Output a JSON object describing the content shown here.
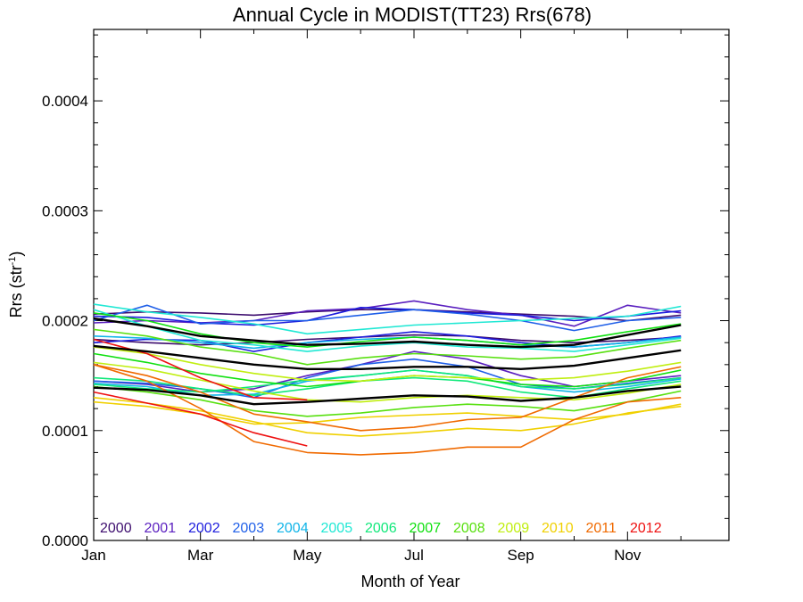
{
  "chart_data": {
    "type": "line",
    "title": "Annual Cycle in MODIST(TT23) Rrs(678)",
    "xlabel": "Month of Year",
    "ylabel_main": "Rrs (str",
    "ylabel_sup": "-1",
    "ylabel_close": ")",
    "xlim": [
      1,
      12.9
    ],
    "ylim": [
      0,
      0.000465
    ],
    "x_ticks": [
      {
        "value": 1,
        "label": "Jan"
      },
      {
        "value": 3,
        "label": "Mar"
      },
      {
        "value": 5,
        "label": "May"
      },
      {
        "value": 7,
        "label": "Jul"
      },
      {
        "value": 9,
        "label": "Sep"
      },
      {
        "value": 11,
        "label": "Nov"
      }
    ],
    "y_ticks": [
      {
        "value": 0,
        "label": "0.0000"
      },
      {
        "value": 0.0001,
        "label": "0.0001"
      },
      {
        "value": 0.0002,
        "label": "0.0002"
      },
      {
        "value": 0.0003,
        "label": "0.0003"
      },
      {
        "value": 0.0004,
        "label": "0.0004"
      }
    ],
    "legend_placement": "bottom-left",
    "legend": [
      {
        "label": "2000",
        "color": "#3d0d6e"
      },
      {
        "label": "2001",
        "color": "#5a1fbf"
      },
      {
        "label": "2002",
        "color": "#1c1cdd"
      },
      {
        "label": "2003",
        "color": "#1f5fe8"
      },
      {
        "label": "2004",
        "color": "#10b4e8"
      },
      {
        "label": "2005",
        "color": "#20e8d4"
      },
      {
        "label": "2006",
        "color": "#10e87a"
      },
      {
        "label": "2007",
        "color": "#10e010"
      },
      {
        "label": "2008",
        "color": "#58e010"
      },
      {
        "label": "2009",
        "color": "#c0ee10"
      },
      {
        "label": "2010",
        "color": "#f0d000"
      },
      {
        "label": "2011",
        "color": "#f06a00"
      },
      {
        "label": "2012",
        "color": "#ee1010"
      }
    ],
    "x": [
      1,
      2,
      3,
      4,
      5,
      6,
      7,
      8,
      9,
      10,
      11,
      12
    ],
    "series": [
      {
        "color": "#3d0d6e",
        "values": [
          0.000206,
          0.000208,
          0.000207,
          0.000205,
          0.000208,
          0.00021,
          0.00021,
          0.000208,
          0.000206,
          0.000204,
          0.0002,
          0.000205
        ]
      },
      {
        "color": "#3d0d6e",
        "values": [
          0.000183,
          0.00018,
          0.000178,
          0.00018,
          0.000183,
          0.000185,
          0.000187,
          0.000186,
          0.000182,
          0.00018,
          0.000182,
          0.000185
        ]
      },
      {
        "color": "#5a1fbf",
        "values": [
          0.000198,
          0.0002,
          0.000198,
          0.0002,
          0.000209,
          0.000211,
          0.000218,
          0.00021,
          0.000205,
          0.000195,
          0.000214,
          0.000207
        ]
      },
      {
        "color": "#5a1fbf",
        "values": [
          0.000145,
          0.000142,
          0.000135,
          0.000138,
          0.00015,
          0.00016,
          0.000172,
          0.000165,
          0.00015,
          0.00014,
          0.000145,
          0.00015
        ]
      },
      {
        "color": "#1c1cdd",
        "values": [
          0.000204,
          0.000203,
          0.000198,
          0.000196,
          0.0002,
          0.000212,
          0.00021,
          0.000207,
          0.000205,
          0.0002,
          0.000204,
          0.000209
        ]
      },
      {
        "color": "#1c1cdd",
        "values": [
          0.00018,
          0.000183,
          0.000182,
          0.000172,
          0.00018,
          0.000185,
          0.00019,
          0.000186,
          0.00018,
          0.000176,
          0.00018,
          0.000186
        ]
      },
      {
        "color": "#1f5fe8",
        "values": [
          0.0002,
          0.000214,
          0.000197,
          0.0002,
          0.0002,
          0.000205,
          0.00021,
          0.000206,
          0.0002,
          0.000191,
          0.0002,
          0.000203
        ]
      },
      {
        "color": "#1f5fe8",
        "values": [
          0.000145,
          0.000143,
          0.000138,
          0.00013,
          0.000148,
          0.00016,
          0.000165,
          0.000158,
          0.000142,
          0.000138,
          0.000143,
          0.000148
        ]
      },
      {
        "color": "#10b4e8",
        "values": [
          0.000186,
          0.000184,
          0.00018,
          0.000175,
          0.00018,
          0.000183,
          0.000185,
          0.000182,
          0.000178,
          0.000176,
          0.00018,
          0.000185
        ]
      },
      {
        "color": "#10b4e8",
        "values": [
          0.000143,
          0.00014,
          0.000132,
          0.000133,
          0.000145,
          0.00015,
          0.000155,
          0.00015,
          0.00014,
          0.000135,
          0.00014,
          0.000147
        ]
      },
      {
        "color": "#20e8d4",
        "values": [
          0.000215,
          0.000208,
          0.000203,
          0.000197,
          0.000188,
          0.000192,
          0.000196,
          0.000198,
          0.0002,
          0.000202,
          0.000204,
          0.000213
        ]
      },
      {
        "color": "#20e8d4",
        "values": [
          0.00021,
          0.000195,
          0.000182,
          0.000178,
          0.000172,
          0.000177,
          0.00018,
          0.000176,
          0.000175,
          0.000172,
          0.000178,
          0.000184
        ]
      },
      {
        "color": "#10e87a",
        "values": [
          0.000148,
          0.000145,
          0.000138,
          0.000132,
          0.000138,
          0.000145,
          0.000148,
          0.000145,
          0.000135,
          0.00013,
          0.000138,
          0.000145
        ]
      },
      {
        "color": "#10e87a",
        "values": [
          0.000142,
          0.000138,
          0.000135,
          0.00014,
          0.000146,
          0.00015,
          0.000155,
          0.00015,
          0.00014,
          0.000138,
          0.000142,
          0.000148
        ]
      },
      {
        "color": "#10e010",
        "values": [
          0.000207,
          0.0002,
          0.000188,
          0.00018,
          0.000176,
          0.000181,
          0.000185,
          0.000182,
          0.000178,
          0.000182,
          0.00019,
          0.000197
        ]
      },
      {
        "color": "#10e010",
        "values": [
          0.00017,
          0.000162,
          0.000152,
          0.000145,
          0.00014,
          0.000145,
          0.00015,
          0.000148,
          0.000142,
          0.00014,
          0.000145,
          0.000155
        ]
      },
      {
        "color": "#58e010",
        "values": [
          0.000192,
          0.000186,
          0.000176,
          0.00017,
          0.00016,
          0.000166,
          0.00017,
          0.000168,
          0.000165,
          0.000167,
          0.000175,
          0.000182
        ]
      },
      {
        "color": "#58e010",
        "values": [
          0.00014,
          0.000135,
          0.000128,
          0.000118,
          0.000113,
          0.000116,
          0.000121,
          0.000124,
          0.000122,
          0.000118,
          0.000126,
          0.000136
        ]
      },
      {
        "color": "#c0ee10",
        "values": [
          0.000176,
          0.00017,
          0.00016,
          0.000152,
          0.000146,
          0.000145,
          0.00015,
          0.000148,
          0.000146,
          0.000148,
          0.000154,
          0.000162
        ]
      },
      {
        "color": "#c0ee10",
        "values": [
          0.000162,
          0.000156,
          0.000146,
          0.000136,
          0.000128,
          0.000126,
          0.00013,
          0.000132,
          0.00013,
          0.000128,
          0.000134,
          0.000142
        ]
      },
      {
        "color": "#f0d000",
        "values": [
          0.00013,
          0.000125,
          0.000118,
          0.000108,
          9.8e-05,
          9.5e-05,
          9.8e-05,
          0.000102,
          0.0001,
          0.000106,
          0.000116,
          0.000122
        ]
      },
      {
        "color": "#f0d000",
        "values": [
          0.000126,
          0.000122,
          0.000115,
          0.000106,
          0.000107,
          0.000112,
          0.000114,
          0.000116,
          0.000113,
          0.00011,
          0.000115,
          0.000124
        ]
      },
      {
        "color": "#f06a00",
        "values": [
          0.00016,
          0.000145,
          0.00012,
          9e-05,
          8e-05,
          7.8e-05,
          8e-05,
          8.5e-05,
          8.5e-05,
          0.00011,
          0.000126,
          0.00013
        ]
      },
      {
        "color": "#f06a00",
        "values": [
          0.00016,
          0.00015,
          0.000135,
          0.000115,
          0.000108,
          0.0001,
          0.000103,
          0.00011,
          0.000112,
          0.00013,
          0.000148,
          0.000158
        ]
      },
      {
        "color": "#ee1010",
        "values": [
          0.000183,
          0.00017,
          0.000148,
          0.00013,
          0.000128,
          null,
          null,
          null,
          null,
          null,
          null,
          null
        ]
      },
      {
        "color": "#ee1010",
        "values": [
          0.000135,
          0.000125,
          0.000115,
          9.8e-05,
          8.6e-05,
          null,
          null,
          null,
          null,
          null,
          null,
          null
        ]
      },
      {
        "color": "#000000",
        "values": [
          0.000202,
          0.000195,
          0.000186,
          0.000182,
          0.000178,
          0.000179,
          0.000181,
          0.000178,
          0.000176,
          0.000178,
          0.000187,
          0.000196
        ]
      },
      {
        "color": "#000000",
        "values": [
          0.000177,
          0.000172,
          0.000166,
          0.00016,
          0.000156,
          0.000156,
          0.000158,
          0.000158,
          0.000156,
          0.000159,
          0.000166,
          0.000173
        ]
      },
      {
        "color": "#000000",
        "values": [
          0.000139,
          0.000137,
          0.000132,
          0.000124,
          0.000126,
          0.000129,
          0.000132,
          0.000131,
          0.000127,
          0.00013,
          0.000136,
          0.00014
        ]
      }
    ]
  }
}
